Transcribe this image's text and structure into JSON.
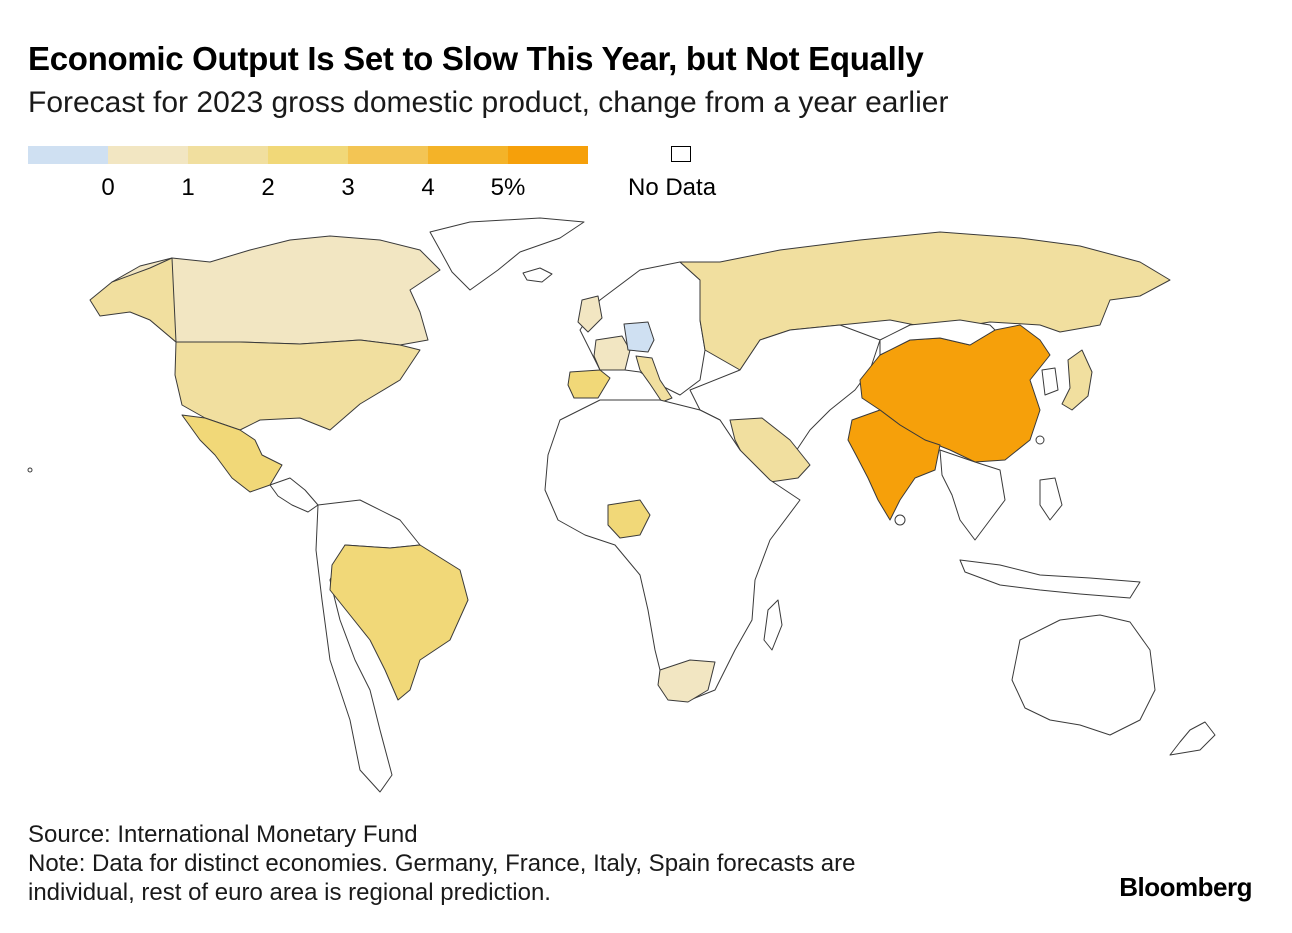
{
  "title": "Economic Output Is Set to Slow This Year, but Not Equally",
  "subtitle": "Forecast for 2023 gross domestic product, change from a year earlier",
  "legend": {
    "colors": [
      "#cfe0f2",
      "#f2e6c2",
      "#f1df9f",
      "#f1d878",
      "#f3c554",
      "#f4b328",
      "#f6a00a"
    ],
    "ticks": [
      "0",
      "1",
      "2",
      "3",
      "4",
      "5%"
    ],
    "no_data_label": "No Data"
  },
  "map": {
    "countries": [
      {
        "name": "Canada",
        "bin": 1
      },
      {
        "name": "United States",
        "bin": 2
      },
      {
        "name": "Mexico",
        "bin": 3
      },
      {
        "name": "Brazil",
        "bin": 3
      },
      {
        "name": "Spain",
        "bin": 3
      },
      {
        "name": "France",
        "bin": 1
      },
      {
        "name": "Germany",
        "bin": 0
      },
      {
        "name": "Italy",
        "bin": 2
      },
      {
        "name": "United Kingdom",
        "bin": 1
      },
      {
        "name": "Russia",
        "bin": 2
      },
      {
        "name": "Saudi Arabia",
        "bin": 2
      },
      {
        "name": "Nigeria",
        "bin": 3
      },
      {
        "name": "South Africa",
        "bin": 1
      },
      {
        "name": "China",
        "bin": 6
      },
      {
        "name": "India",
        "bin": 6
      },
      {
        "name": "Japan",
        "bin": 2
      }
    ]
  },
  "footer": {
    "source": "Source: International Monetary Fund",
    "note_line1": "Note: Data for distinct economies. Germany, France, Italy, Spain forecasts are",
    "note_line2": "individual, rest of euro area is regional prediction."
  },
  "brand": "Bloomberg"
}
